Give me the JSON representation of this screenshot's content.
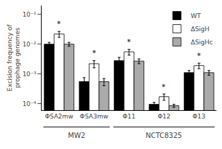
{
  "chart_data": {
    "type": "bar",
    "categories": [
      "ΦSA2mw",
      "ΦSA3mw",
      "Φ11",
      "Φ12",
      "Φ13"
    ],
    "series": [
      {
        "name": "WT",
        "color": "black",
        "values": [
          0.01,
          0.00055,
          0.0028,
          9.5e-05,
          0.0011
        ],
        "errors": [
          0.0015,
          0.0002,
          0.0008,
          1.5e-05,
          0.0002
        ]
      },
      {
        "name": "ΔSigH",
        "color": "white",
        "values": [
          0.022,
          0.0022,
          0.0055,
          0.00017,
          0.0019
        ],
        "errors": [
          0.005,
          0.0006,
          0.0012,
          4e-05,
          0.0004
        ]
      },
      {
        "name": "ΔSigHc",
        "color": "#aaaaaa",
        "values": [
          0.01,
          0.00055,
          0.0027,
          8.5e-05,
          0.0011
        ],
        "errors": [
          0.0015,
          0.00015,
          0.0005,
          1e-05,
          0.0002
        ]
      }
    ],
    "ylabel": "Excision frequency of\nprophage genomes",
    "log": "y",
    "ylim": [
      6e-05,
      0.2
    ],
    "yticks": [
      {
        "value": 0.0001,
        "label": "10⁻⁴"
      },
      {
        "value": 0.001,
        "label": "10⁻³"
      },
      {
        "value": 0.01,
        "label": "10⁻²"
      },
      {
        "value": 0.1,
        "label": "10⁻¹"
      }
    ],
    "grid": false,
    "legend": "upper right",
    "annotations": [
      {
        "text": "*",
        "category": "ΦSA2mw"
      },
      {
        "text": "*",
        "category": "ΦSA3mw"
      },
      {
        "text": "*",
        "category": "Φ11"
      },
      {
        "text": "*",
        "category": "Φ12"
      },
      {
        "text": "*",
        "category": "Φ13"
      },
      {
        "text": "MW2",
        "categories": [
          "ΦSA2mw",
          "ΦSA3mw"
        ]
      },
      {
        "text": "NCTC8325",
        "categories": [
          "Φ11",
          "Φ12",
          "Φ13"
        ]
      }
    ]
  }
}
